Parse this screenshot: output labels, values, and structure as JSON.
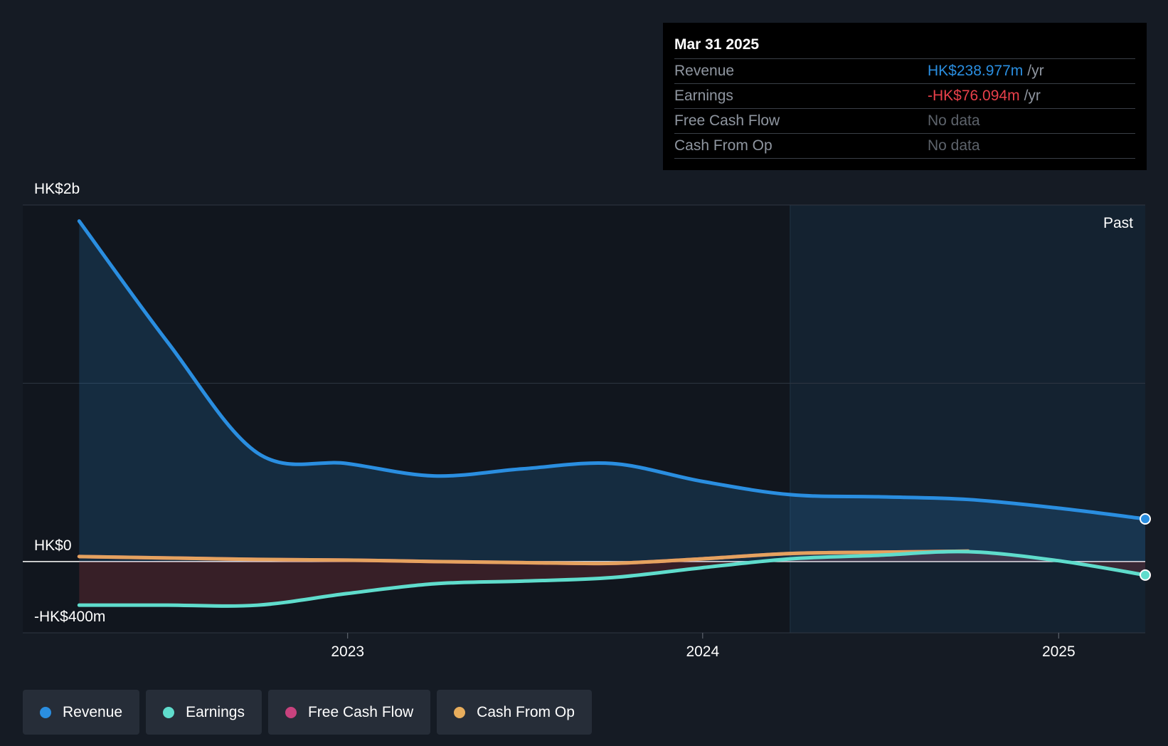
{
  "tooltip": {
    "date": "Mar 31 2025",
    "rows": [
      {
        "label": "Revenue",
        "value": "HK$238.977m",
        "unit": "/yr",
        "color": "#2a8ee0"
      },
      {
        "label": "Earnings",
        "value": "-HK$76.094m",
        "unit": "/yr",
        "color": "#e8404a"
      },
      {
        "label": "Free Cash Flow",
        "value": "No data",
        "unit": ""
      },
      {
        "label": "Cash From Op",
        "value": "No data",
        "unit": ""
      }
    ]
  },
  "legend": [
    {
      "label": "Revenue",
      "color": "#2a8ee0"
    },
    {
      "label": "Earnings",
      "color": "#5fdccc"
    },
    {
      "label": "Free Cash Flow",
      "color": "#c8427e"
    },
    {
      "label": "Cash From Op",
      "color": "#e8ad5c"
    }
  ],
  "chart_data": {
    "type": "line",
    "ylim": [
      -400,
      2000
    ],
    "y_tick_labels": [
      {
        "value": 2000,
        "label": "HK$2b"
      },
      {
        "value": 0,
        "label": "HK$0"
      },
      {
        "value": -400,
        "label": "-HK$400m"
      }
    ],
    "xlim": [
      "2022-02-01",
      "2025-03-31"
    ],
    "x_ticks": [
      {
        "date": "2023-01-01",
        "label": "2023"
      },
      {
        "date": "2024-01-01",
        "label": "2024"
      },
      {
        "date": "2025-01-01",
        "label": "2025"
      }
    ],
    "past_label": "Past",
    "past_start": "2024-03-31",
    "series": [
      {
        "name": "Revenue",
        "color": "#2a8ee0",
        "points": [
          [
            "2022-03-31",
            1910
          ],
          [
            "2022-06-30",
            1230
          ],
          [
            "2022-09-30",
            610
          ],
          [
            "2022-12-31",
            550
          ],
          [
            "2023-03-31",
            480
          ],
          [
            "2023-06-30",
            520
          ],
          [
            "2023-09-30",
            550
          ],
          [
            "2023-12-31",
            450
          ],
          [
            "2024-03-31",
            375
          ],
          [
            "2024-06-30",
            363
          ],
          [
            "2024-09-30",
            348
          ],
          [
            "2024-12-31",
            300
          ],
          [
            "2025-03-31",
            239
          ]
        ]
      },
      {
        "name": "Earnings",
        "color": "#5fdccc",
        "points": [
          [
            "2022-03-31",
            -245
          ],
          [
            "2022-06-30",
            -245
          ],
          [
            "2022-09-30",
            -245
          ],
          [
            "2022-12-31",
            -180
          ],
          [
            "2023-03-31",
            -125
          ],
          [
            "2023-06-30",
            -110
          ],
          [
            "2023-09-30",
            -90
          ],
          [
            "2023-12-31",
            -35
          ],
          [
            "2024-03-31",
            15
          ],
          [
            "2024-06-30",
            35
          ],
          [
            "2024-09-30",
            55
          ],
          [
            "2024-12-31",
            5
          ],
          [
            "2025-03-31",
            -76
          ]
        ]
      },
      {
        "name": "Cash From Op",
        "color": "#e8ad5c",
        "points": [
          [
            "2022-03-31",
            28
          ],
          [
            "2022-06-30",
            20
          ],
          [
            "2022-09-30",
            12
          ],
          [
            "2022-12-31",
            8
          ],
          [
            "2023-03-31",
            0
          ],
          [
            "2023-06-30",
            -6
          ],
          [
            "2023-09-30",
            -10
          ],
          [
            "2023-12-31",
            15
          ],
          [
            "2024-03-31",
            45
          ],
          [
            "2024-06-30",
            52
          ],
          [
            "2024-09-30",
            58
          ]
        ]
      },
      {
        "name": "Free Cash Flow",
        "color": "#c8427e",
        "points": [
          [
            "2022-03-31",
            28
          ],
          [
            "2022-06-30",
            20
          ],
          [
            "2022-09-30",
            12
          ],
          [
            "2022-12-31",
            8
          ],
          [
            "2023-03-31",
            0
          ],
          [
            "2023-06-30",
            -6
          ],
          [
            "2023-09-30",
            -10
          ],
          [
            "2023-12-31",
            15
          ],
          [
            "2024-03-31",
            45
          ],
          [
            "2024-06-30",
            52
          ],
          [
            "2024-09-30",
            58
          ]
        ]
      }
    ]
  }
}
